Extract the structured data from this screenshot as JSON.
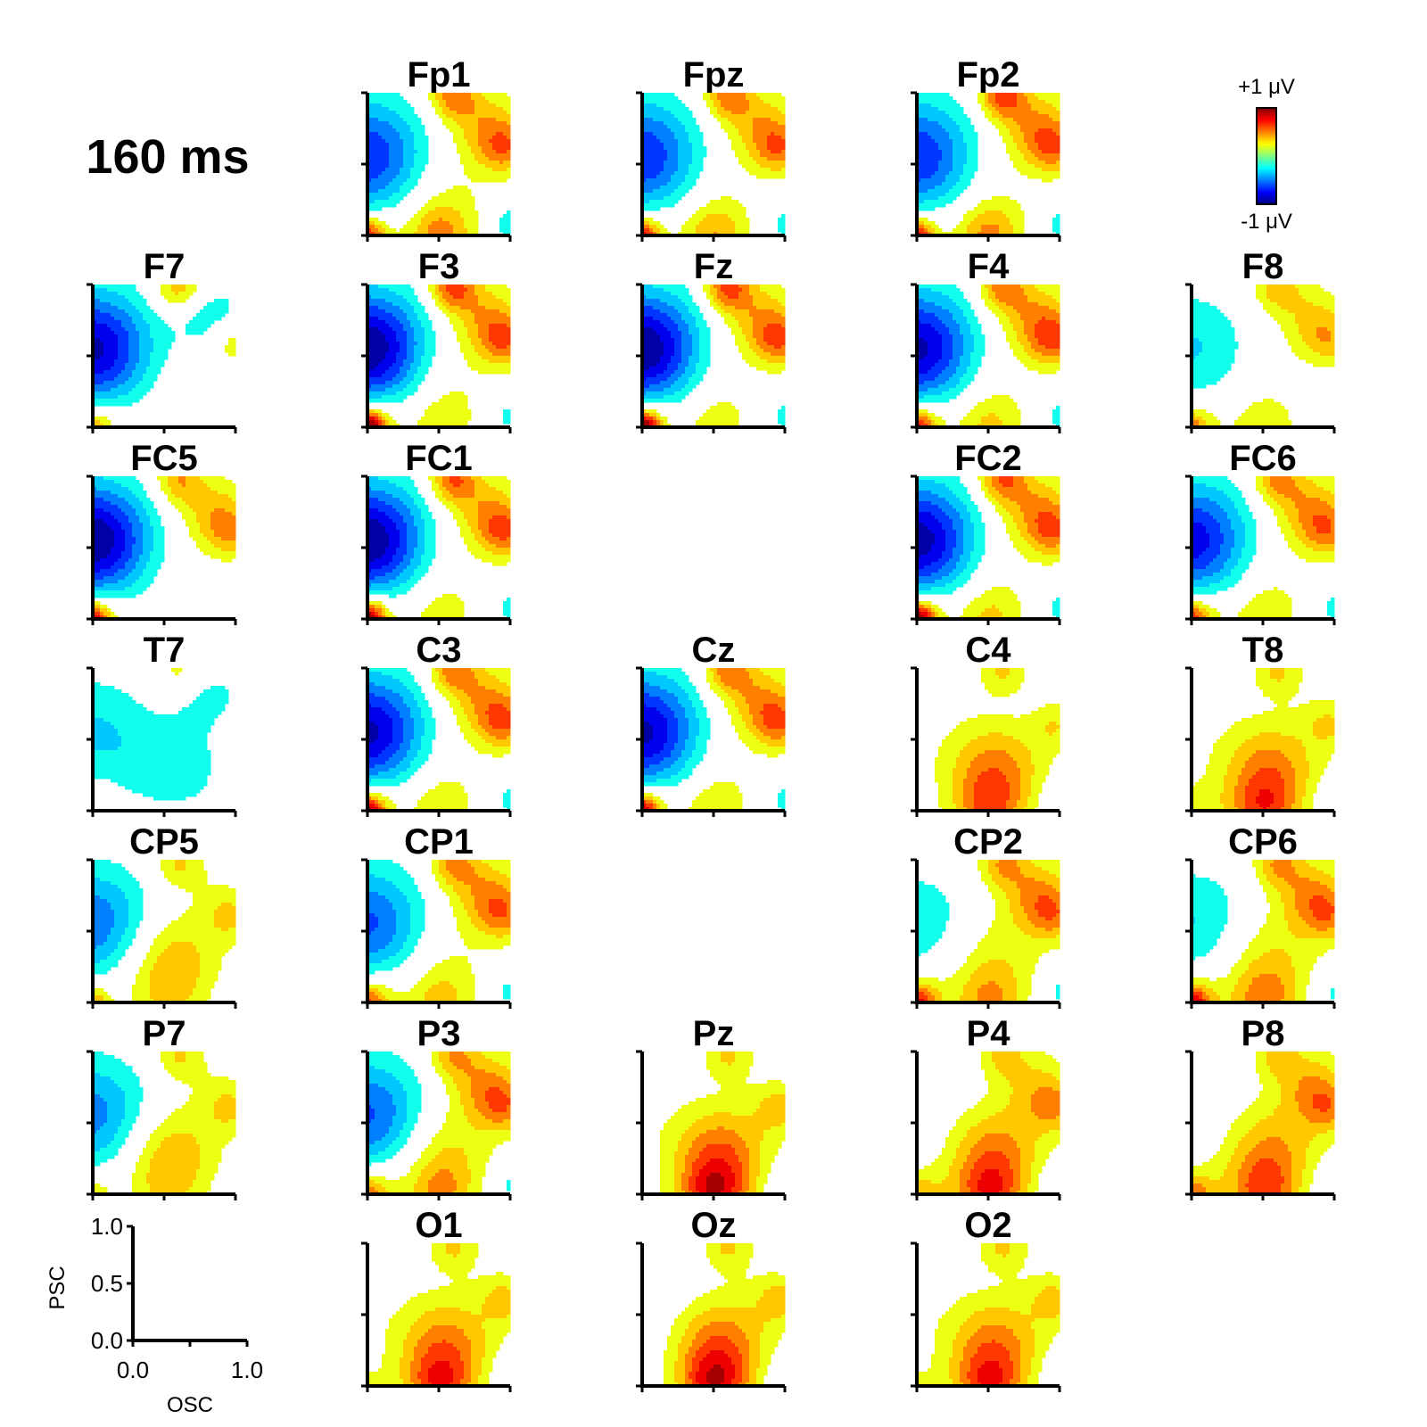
{
  "chart_data": {
    "type": "heatmap",
    "time_label": "160 ms",
    "colorbar": {
      "max_label": "+1 μV",
      "min_label": "-1 μV",
      "vmin": -1,
      "vmax": 1
    },
    "reference_axes": {
      "xlabel": "OSC",
      "ylabel": "PSC",
      "xlim": [
        0,
        1
      ],
      "ylim": [
        0,
        1
      ],
      "xticklabels": [
        "0.0",
        "1.0"
      ],
      "yticklabels": [
        "0.0",
        "0.5",
        "1.0"
      ]
    },
    "electrodes": [
      {
        "name": "Fp1",
        "row": 0,
        "col": 1,
        "field": [
          -0.7,
          0.15,
          0.2,
          0.6,
          0.45,
          0.4,
          0.5,
          0.35,
          -0.25
        ]
      },
      {
        "name": "Fpz",
        "row": 0,
        "col": 2,
        "field": [
          -0.7,
          0.1,
          0.2,
          0.65,
          0.4,
          0.4,
          0.5,
          0.35,
          -0.2
        ]
      },
      {
        "name": "Fp2",
        "row": 0,
        "col": 3,
        "field": [
          -0.7,
          0.1,
          0.2,
          0.65,
          0.45,
          0.45,
          0.6,
          0.35,
          -0.2
        ]
      },
      {
        "name": "F7",
        "row": 1,
        "col": 0,
        "field": [
          -0.9,
          0.05,
          0.2,
          0.35,
          0.05,
          -0.25,
          0.4,
          0.3,
          -0.1
        ]
      },
      {
        "name": "F3",
        "row": 1,
        "col": 1,
        "field": [
          -1.0,
          0.15,
          0.35,
          0.9,
          0.2,
          0.4,
          0.6,
          0.4,
          -0.2
        ]
      },
      {
        "name": "Fz",
        "row": 1,
        "col": 2,
        "field": [
          -1.0,
          0.1,
          0.3,
          0.95,
          0.2,
          0.4,
          0.6,
          0.4,
          -0.2
        ]
      },
      {
        "name": "F4",
        "row": 1,
        "col": 3,
        "field": [
          -0.9,
          0.1,
          0.3,
          0.6,
          0.3,
          0.45,
          0.5,
          0.4,
          -0.2
        ]
      },
      {
        "name": "F8",
        "row": 1,
        "col": 4,
        "field": [
          -0.3,
          0.05,
          0.2,
          0.35,
          0.25,
          0.3,
          0.35,
          0.25,
          -0.1
        ]
      },
      {
        "name": "FC5",
        "row": 2,
        "col": 0,
        "field": [
          -1.0,
          0.05,
          0.25,
          0.7,
          0.05,
          0.35,
          0.4,
          0.3,
          -0.1
        ]
      },
      {
        "name": "FC1",
        "row": 2,
        "col": 1,
        "field": [
          -1.0,
          0.1,
          0.3,
          0.85,
          0.2,
          0.4,
          0.55,
          0.4,
          -0.2
        ]
      },
      {
        "name": "FC2",
        "row": 2,
        "col": 3,
        "field": [
          -0.95,
          0.1,
          0.3,
          0.9,
          0.3,
          0.45,
          0.55,
          0.35,
          -0.2
        ]
      },
      {
        "name": "FC6",
        "row": 2,
        "col": 4,
        "field": [
          -0.8,
          0.1,
          0.3,
          0.5,
          0.25,
          0.45,
          0.45,
          0.3,
          -0.2
        ]
      },
      {
        "name": "T7",
        "row": 3,
        "col": 0,
        "field": [
          -0.3,
          -0.25,
          0.1,
          0.05,
          0.05,
          -0.2,
          0.2,
          0.1,
          -0.05
        ]
      },
      {
        "name": "C3",
        "row": 3,
        "col": 1,
        "field": [
          -0.9,
          0.1,
          0.3,
          0.75,
          0.25,
          0.45,
          0.5,
          0.35,
          -0.2
        ]
      },
      {
        "name": "Cz",
        "row": 3,
        "col": 2,
        "field": [
          -0.9,
          0.1,
          0.25,
          0.75,
          0.25,
          0.45,
          0.5,
          0.35,
          -0.2
        ]
      },
      {
        "name": "C4",
        "row": 3,
        "col": 3,
        "field": [
          0.05,
          0.5,
          0.0,
          0.1,
          0.4,
          0.0,
          0.3,
          0.25,
          -0.15
        ]
      },
      {
        "name": "T8",
        "row": 3,
        "col": 4,
        "field": [
          0.05,
          0.5,
          0.15,
          0.1,
          0.45,
          0.05,
          0.3,
          0.25,
          -0.15
        ]
      },
      {
        "name": "CP5",
        "row": 4,
        "col": 0,
        "field": [
          -0.55,
          0.4,
          0.1,
          0.4,
          0.15,
          0.1,
          0.3,
          0.25,
          -0.05
        ]
      },
      {
        "name": "CP1",
        "row": 4,
        "col": 1,
        "field": [
          -0.6,
          0.15,
          0.3,
          0.4,
          0.3,
          0.45,
          0.45,
          0.3,
          -0.2
        ]
      },
      {
        "name": "CP2",
        "row": 4,
        "col": 3,
        "field": [
          -0.25,
          0.25,
          0.3,
          0.5,
          0.35,
          0.45,
          0.4,
          0.3,
          -0.2
        ]
      },
      {
        "name": "CP6",
        "row": 4,
        "col": 4,
        "field": [
          -0.3,
          0.3,
          0.3,
          0.6,
          0.4,
          0.45,
          0.4,
          0.3,
          -0.2
        ]
      },
      {
        "name": "P7",
        "row": 5,
        "col": 0,
        "field": [
          -0.5,
          0.4,
          0.1,
          0.2,
          0.15,
          0.1,
          0.3,
          0.25,
          -0.05
        ]
      },
      {
        "name": "P3",
        "row": 5,
        "col": 1,
        "field": [
          -0.6,
          0.3,
          0.3,
          0.3,
          0.35,
          0.45,
          0.4,
          0.3,
          -0.2
        ]
      },
      {
        "name": "Pz",
        "row": 5,
        "col": 2,
        "field": [
          0.05,
          0.55,
          0.0,
          0.1,
          0.6,
          0.05,
          0.3,
          0.3,
          -0.15
        ]
      },
      {
        "name": "P4",
        "row": 5,
        "col": 3,
        "field": [
          -0.05,
          0.5,
          0.2,
          0.2,
          0.5,
          0.3,
          0.3,
          0.3,
          -0.2
        ]
      },
      {
        "name": "P8",
        "row": 5,
        "col": 4,
        "field": [
          -0.05,
          0.45,
          0.25,
          0.3,
          0.45,
          0.4,
          0.3,
          0.3,
          -0.2
        ]
      },
      {
        "name": "O1",
        "row": 6,
        "col": 1,
        "field": [
          0.05,
          0.5,
          0.05,
          0.1,
          0.5,
          0.05,
          0.3,
          0.3,
          -0.15
        ]
      },
      {
        "name": "Oz",
        "row": 6,
        "col": 2,
        "field": [
          -0.05,
          0.55,
          0.0,
          0.05,
          0.6,
          0.05,
          0.3,
          0.3,
          -0.15
        ]
      },
      {
        "name": "O2",
        "row": 6,
        "col": 3,
        "field": [
          0.05,
          0.5,
          0.05,
          0.1,
          0.5,
          0.05,
          0.3,
          0.3,
          -0.15
        ]
      }
    ]
  }
}
